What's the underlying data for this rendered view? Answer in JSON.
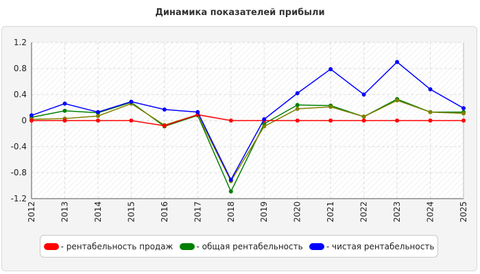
{
  "chart_data": {
    "type": "line",
    "title": "Динамика показателей прибыли",
    "xlabel": "",
    "ylabel": "",
    "categories": [
      "2012",
      "2013",
      "2014",
      "2015",
      "2016",
      "2017",
      "2018",
      "2019",
      "2020",
      "2021",
      "2022",
      "2023",
      "2024",
      "2025"
    ],
    "ylim": [
      -1.2,
      1.2
    ],
    "yticks": [
      "1.2",
      "0.8",
      "0.4",
      "0",
      "-0.4",
      "-0.8",
      "-1.2"
    ],
    "ytick_values": [
      1.2,
      0.8,
      0.4,
      0,
      -0.4,
      -0.8,
      -1.2
    ],
    "grid": true,
    "legend_position": "bottom",
    "series": [
      {
        "name": "общая рентабельность",
        "color": "#008000",
        "values": [
          0.05,
          0.15,
          0.12,
          0.28,
          -0.09,
          0.08,
          -1.09,
          -0.05,
          0.24,
          0.23,
          0.06,
          0.33,
          0.13,
          0.13
        ]
      },
      {
        "name": "",
        "color": "#808000",
        "values": [
          0.02,
          0.03,
          0.07,
          0.26,
          -0.07,
          0.09,
          -0.93,
          -0.09,
          0.18,
          0.21,
          0.06,
          0.31,
          0.13,
          0.11
        ]
      },
      {
        "name": "рентабельность продаж",
        "color": "#ff0000",
        "values": [
          0.0,
          0.0,
          0.0,
          0.0,
          -0.08,
          0.09,
          0.0,
          0.0,
          0.0,
          0.0,
          0.0,
          0.0,
          0.0,
          0.0
        ]
      },
      {
        "name": "чистая рентабельность",
        "color": "#0000ff",
        "values": [
          0.08,
          0.26,
          0.13,
          0.29,
          0.17,
          0.13,
          -0.91,
          0.02,
          0.42,
          0.79,
          0.4,
          0.9,
          0.48,
          0.19
        ]
      }
    ]
  },
  "legend": {
    "items": [
      {
        "label": "- рентабельность продаж",
        "color": "#ff0000"
      },
      {
        "label": "- общая рентабельность",
        "color": "#008000"
      },
      {
        "label": "- чистая рентабельность",
        "color": "#0000ff"
      }
    ]
  }
}
